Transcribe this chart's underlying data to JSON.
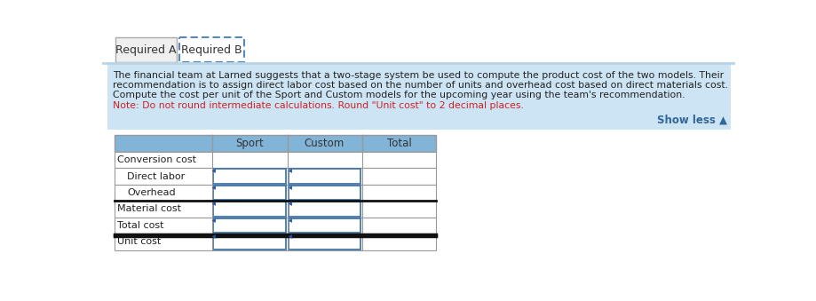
{
  "tab1_label": "Required A",
  "tab2_label": "Required B",
  "description_lines": [
    "The financial team at Larned suggests that a two-stage system be used to compute the product cost of the two models. Their",
    "recommendation is to assign direct labor cost based on the number of units and overhead cost based on direct materials cost.",
    "Compute the cost per unit of the Sport and Custom models for the upcoming year using the team's recommendation."
  ],
  "note_line": "Note: Do not round intermediate calculations. Round \"Unit cost\" to 2 decimal places.",
  "show_less_text": "Show less ▲",
  "table_header": [
    "",
    "Sport",
    "Custom",
    "Total"
  ],
  "table_rows": [
    [
      "Conversion cost",
      "",
      "",
      ""
    ],
    [
      "Direct labor",
      "",
      "",
      ""
    ],
    [
      "Overhead",
      "",
      "",
      ""
    ],
    [
      "Material cost",
      "",
      "",
      ""
    ],
    [
      "Total cost",
      "",
      "",
      ""
    ],
    [
      "Unit cost",
      "",
      "",
      ""
    ]
  ],
  "tab_bg": "#efefef",
  "tab_active_bg": "#ffffff",
  "tab_border_color": "#5588bb",
  "tab_text_color": "#333333",
  "info_bg": "#cde4f5",
  "desc_text_color": "#222222",
  "note_text_color": "#cc2222",
  "show_less_color": "#336699",
  "table_header_bg": "#82b4d8",
  "table_header_text": "#333333",
  "table_row_bg": "#ffffff",
  "table_border_color": "#999999",
  "table_input_border": "#4477aa",
  "input_arrow_color": "#2255aa",
  "indent_rows": [
    1,
    2
  ],
  "double_line_before_rows": [
    5
  ],
  "bold_line_before_rows": [
    3
  ],
  "input_rows": [
    1,
    2,
    3,
    4,
    5
  ],
  "input_cols": [
    1,
    2
  ],
  "fig_bg": "#ffffff"
}
